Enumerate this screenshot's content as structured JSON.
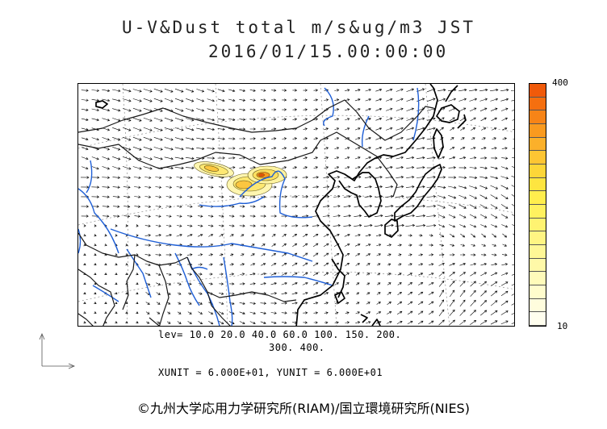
{
  "title": {
    "line1": "U-V&Dust total m/s&ug/m3 JST",
    "line2": "2016/01/15.00:00:00"
  },
  "colorbar": {
    "max_label": "400",
    "min_label": "10",
    "colors": [
      "#f05a0a",
      "#f56f0f",
      "#f78417",
      "#f99a1f",
      "#fbb02a",
      "#fdc533",
      "#fdd638",
      "#fee540",
      "#ffee4d",
      "#fff15f",
      "#fff371",
      "#fff583",
      "#fff796",
      "#fff9a8",
      "#fffbba",
      "#fffccc",
      "#fffddd",
      "#fffeee"
    ]
  },
  "legend": {
    "levels_line1": "lev= 10.0 20.0 40.0 60.0 100. 150. 200.",
    "levels_line2": "300. 400.",
    "units_line": "XUNIT = 6.000E+01, YUNIT = 6.000E+01"
  },
  "colors": {
    "coast": "#000000",
    "border": "#1a1a1a",
    "river": "#1f5fd6",
    "grid": "#777777",
    "vector": "#000000"
  },
  "icons": {
    "reference_vector": "axis-arrows-icon"
  },
  "copyright": "©九州大学応用力学研究所(RIAM)/国立環境研究所(NIES)"
}
